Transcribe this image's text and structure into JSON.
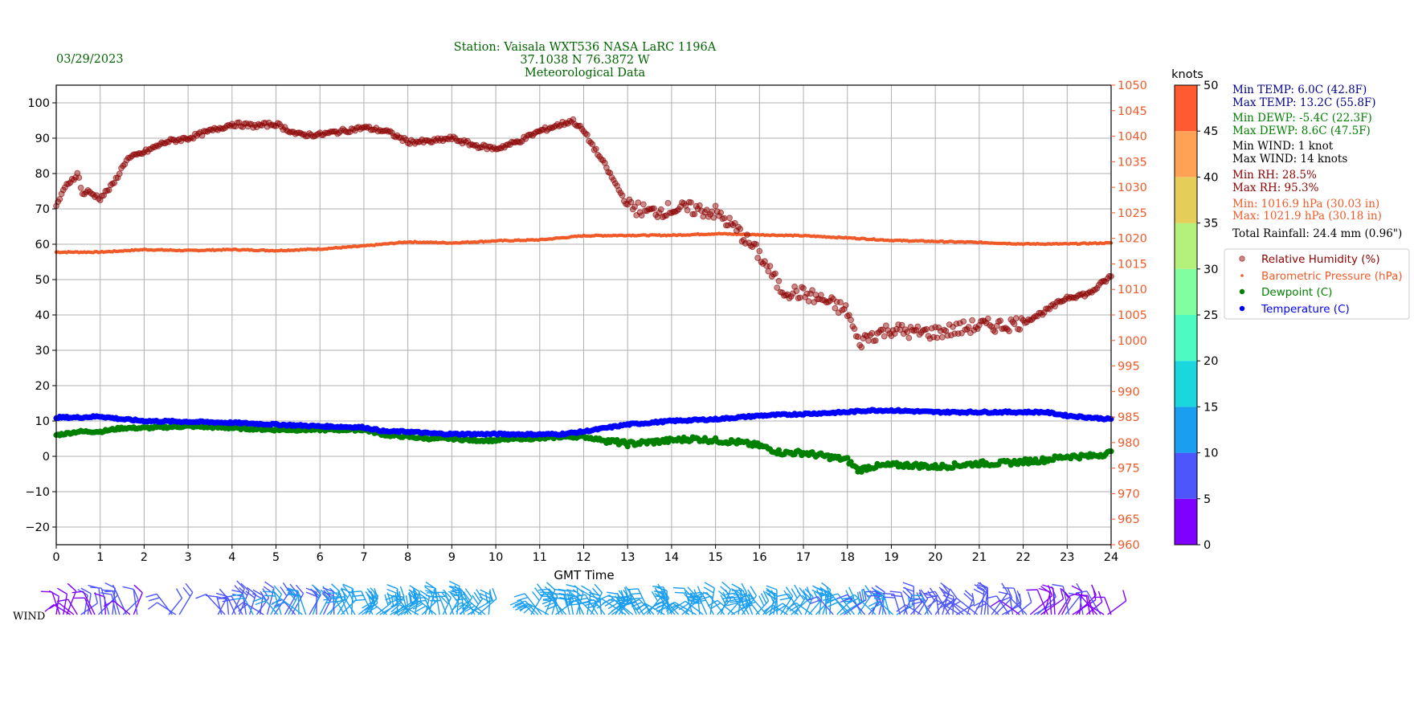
{
  "header": {
    "date": "03/29/2023",
    "title_line1": "Station:  Vaisala WXT536  NASA LaRC 1196A",
    "title_line2": "37.1038 N 76.3872 W",
    "title_line3": "Meteorological Data"
  },
  "colors": {
    "header": "#006400",
    "rh": "#8b0000",
    "pressure": "#f05a28",
    "dewpoint": "#008000",
    "temperature": "#0000ff",
    "grid": "#b0b0b0"
  },
  "stats": {
    "min_temp": "Min TEMP: 6.0C (42.8F)",
    "max_temp": "Max TEMP: 13.2C (55.8F)",
    "min_dewp": "Min DEWP: -5.4C (22.3F)",
    "max_dewp": "Max DEWP: 8.6C (47.5F)",
    "min_wind": "Min WIND: 1 knot",
    "max_wind": "Max WIND: 14 knots",
    "min_rh": "Min RH: 28.5%",
    "max_rh": "Max RH: 95.3%",
    "min_press": "Min: 1016.9 hPa (30.03 in)",
    "max_press": "Max: 1021.9 hPa (30.18 in)",
    "rainfall": "Total Rainfall: 24.4 mm (0.96\")"
  },
  "wind_label": "WIND",
  "colorbar": {
    "label": "knots",
    "ticks": [
      0,
      5,
      10,
      15,
      20,
      25,
      30,
      35,
      40,
      45,
      50
    ],
    "colors": [
      "#7f00ff",
      "#4d55fd",
      "#1a9ef0",
      "#1ad6dd",
      "#4dfbc2",
      "#80fea0",
      "#b3f17b",
      "#e6cd5a",
      "#ffa256",
      "#ff5a30",
      "#ff0000"
    ]
  },
  "chart_data": {
    "type": "scatter",
    "xlabel": "GMT Time",
    "x_ticks": [
      0,
      1,
      2,
      3,
      4,
      5,
      6,
      7,
      8,
      9,
      10,
      11,
      12,
      13,
      14,
      15,
      16,
      17,
      18,
      19,
      20,
      21,
      22,
      23,
      24
    ],
    "xlim": [
      0,
      24
    ],
    "ylim_left": [
      -25,
      105
    ],
    "y_ticks_left": [
      -20,
      -10,
      0,
      10,
      20,
      30,
      40,
      50,
      60,
      70,
      80,
      90,
      100
    ],
    "ylim_right": [
      960,
      1050
    ],
    "y_ticks_right": [
      960,
      965,
      970,
      975,
      980,
      985,
      990,
      995,
      1000,
      1005,
      1010,
      1015,
      1020,
      1025,
      1030,
      1035,
      1040,
      1045,
      1050
    ],
    "grid": true,
    "legend_position": "right",
    "series": [
      {
        "name": "Relative Humidity (%)",
        "axis": "left",
        "x": [
          0,
          0.25,
          0.5,
          0.6,
          0.7,
          1.0,
          1.3,
          1.6,
          2.0,
          2.5,
          3.0,
          3.5,
          4.0,
          4.5,
          5.0,
          5.5,
          6.0,
          6.5,
          7.0,
          7.5,
          8.0,
          8.5,
          9.0,
          9.5,
          10.0,
          10.5,
          11.0,
          11.5,
          11.75,
          12.0,
          12.5,
          13.0,
          13.5,
          14.0,
          14.5,
          15.0,
          15.5,
          16.0,
          16.5,
          17.0,
          17.5,
          18.0,
          18.25,
          18.5,
          19.0,
          19.5,
          20.0,
          20.5,
          21.0,
          21.5,
          22.0,
          22.5,
          23.0,
          23.5,
          24.0
        ],
        "values": [
          71,
          77,
          80,
          74,
          75,
          73,
          77,
          84,
          86,
          89,
          90,
          92,
          94,
          93.5,
          94,
          91,
          91,
          92,
          93,
          92,
          89,
          89,
          90,
          88,
          87,
          89,
          92,
          94,
          95,
          92,
          82,
          71,
          69,
          70,
          70,
          69,
          64,
          57,
          47,
          46,
          44,
          41,
          32,
          34,
          36,
          35,
          35,
          36,
          37,
          37,
          38,
          41,
          45,
          46,
          51
        ]
      },
      {
        "name": "Barometric Pressure (hPa)",
        "axis": "right",
        "x": [
          0,
          1,
          2,
          3,
          4,
          5,
          6,
          7,
          8,
          9,
          10,
          11,
          12,
          13,
          14,
          15,
          16,
          17,
          18,
          19,
          20,
          21,
          22,
          23,
          24
        ],
        "values": [
          1017.3,
          1017.3,
          1017.8,
          1017.6,
          1017.8,
          1017.6,
          1017.9,
          1018.5,
          1019.3,
          1019.1,
          1019.5,
          1019.7,
          1020.5,
          1020.6,
          1020.6,
          1020.9,
          1020.7,
          1020.5,
          1020.1,
          1019.6,
          1019.4,
          1019.2,
          1018.9,
          1018.9,
          1019.1
        ]
      },
      {
        "name": "Dewpoint (C)",
        "axis": "left",
        "x": [
          0,
          0.5,
          1,
          1.5,
          2,
          3,
          4,
          5,
          6,
          7,
          7.5,
          8,
          8.5,
          9,
          9.5,
          10,
          10.5,
          11,
          11.5,
          12,
          12.5,
          13,
          13.5,
          14,
          14.5,
          15,
          15.5,
          16,
          16.5,
          17,
          17.5,
          18,
          18.25,
          18.5,
          19,
          19.5,
          20,
          20.5,
          21,
          21.5,
          22,
          22.5,
          23,
          23.5,
          24
        ],
        "values": [
          6,
          7,
          7,
          8,
          8,
          8.5,
          8,
          7.5,
          7.5,
          7.5,
          6,
          5.5,
          5,
          5,
          4.5,
          4.5,
          5,
          5,
          5.5,
          5.5,
          4.5,
          3.5,
          4,
          4.5,
          5,
          4.5,
          4,
          3,
          1,
          1,
          0,
          -1,
          -4,
          -3,
          -2.5,
          -2.5,
          -3,
          -2.5,
          -2,
          -2,
          -1.5,
          -1,
          0,
          0,
          1
        ]
      },
      {
        "name": "Temperature (C)",
        "axis": "left",
        "x": [
          0,
          0.5,
          1,
          1.5,
          2,
          3,
          4,
          5,
          6,
          7,
          7.5,
          8,
          8.5,
          9,
          10,
          11,
          11.5,
          12,
          12.5,
          13,
          14,
          15,
          16,
          17,
          18,
          18.5,
          19,
          20,
          21,
          22,
          22.5,
          23,
          24
        ],
        "values": [
          11,
          11,
          11.3,
          10.5,
          10,
          9.8,
          9.5,
          9,
          8.5,
          8.2,
          7,
          7,
          6.5,
          6.3,
          6.3,
          6.2,
          6.3,
          7,
          8,
          9,
          10,
          10.5,
          11.5,
          12,
          12.5,
          13,
          13,
          12.5,
          12.5,
          12.5,
          12.5,
          11.5,
          10.5
        ]
      }
    ],
    "wind": {
      "label": "WIND",
      "units": "knots",
      "min_knots": 1,
      "max_knots": 14
    }
  }
}
